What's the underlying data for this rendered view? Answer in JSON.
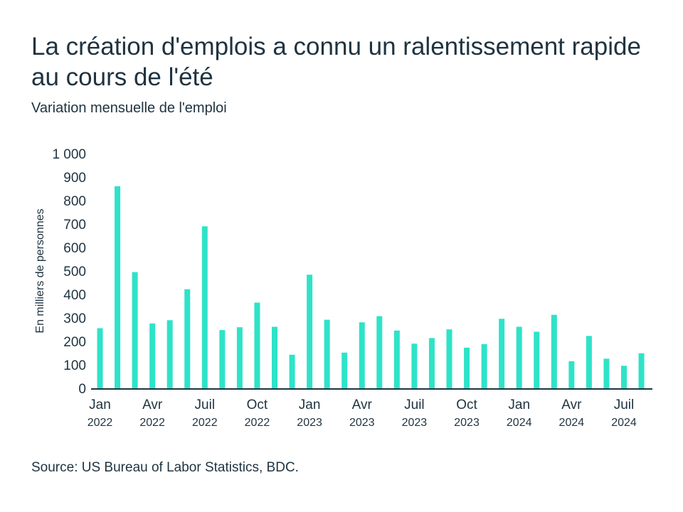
{
  "title": "La création d'emplois a connu un ralentissement rapide au cours de l'été",
  "subtitle": "Variation mensuelle de l'emploi",
  "source": "Source: US Bureau of Labor Statistics, BDC.",
  "colors": {
    "bar": "#2ee3c8",
    "text": "#1f3340",
    "axis": "#1f3340"
  },
  "chart_data": {
    "type": "bar",
    "ylabel": "En milliers de personnes",
    "ylim": [
      0,
      1000
    ],
    "yticks": [
      0,
      100,
      200,
      300,
      400,
      500,
      600,
      700,
      800,
      900,
      1000
    ],
    "ytick_labels": [
      "0",
      "100",
      "200",
      "300",
      "400",
      "500",
      "600",
      "700",
      "800",
      "900",
      "1 000"
    ],
    "categories": [
      "2022-01",
      "2022-02",
      "2022-03",
      "2022-04",
      "2022-05",
      "2022-06",
      "2022-07",
      "2022-08",
      "2022-09",
      "2022-10",
      "2022-11",
      "2022-12",
      "2023-01",
      "2023-02",
      "2023-03",
      "2023-04",
      "2023-05",
      "2023-06",
      "2023-07",
      "2023-08",
      "2023-09",
      "2023-10",
      "2023-11",
      "2023-12",
      "2024-01",
      "2024-02",
      "2024-03",
      "2024-04",
      "2024-05",
      "2024-06",
      "2024-07",
      "2024-08"
    ],
    "values": [
      256,
      861,
      495,
      276,
      290,
      422,
      690,
      248,
      260,
      365,
      262,
      143,
      484,
      292,
      152,
      281,
      307,
      246,
      190,
      214,
      251,
      173,
      188,
      296,
      262,
      241,
      313,
      115,
      223,
      126,
      96,
      149
    ],
    "xtick_labels": [
      {
        "index": 0,
        "month": "Jan",
        "year": "2022"
      },
      {
        "index": 3,
        "month": "Avr",
        "year": "2022"
      },
      {
        "index": 6,
        "month": "Juil",
        "year": "2022"
      },
      {
        "index": 9,
        "month": "Oct",
        "year": "2022"
      },
      {
        "index": 12,
        "month": "Jan",
        "year": "2023"
      },
      {
        "index": 15,
        "month": "Avr",
        "year": "2023"
      },
      {
        "index": 18,
        "month": "Juil",
        "year": "2023"
      },
      {
        "index": 21,
        "month": "Oct",
        "year": "2023"
      },
      {
        "index": 24,
        "month": "Jan",
        "year": "2024"
      },
      {
        "index": 27,
        "month": "Avr",
        "year": "2024"
      },
      {
        "index": 30,
        "month": "Juil",
        "year": "2024"
      }
    ],
    "grid": false,
    "legend": "none"
  }
}
